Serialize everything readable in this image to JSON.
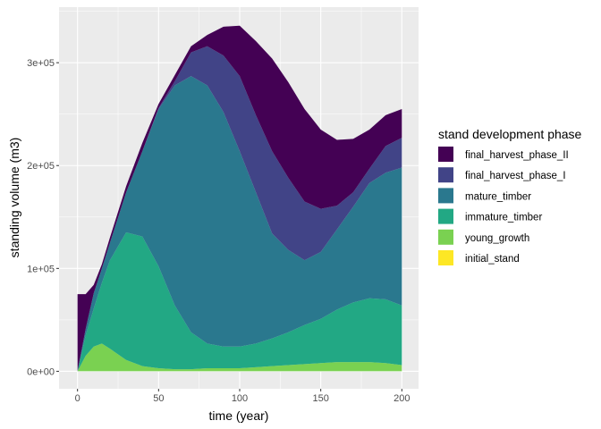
{
  "chart_data": {
    "type": "area",
    "stacked": true,
    "xlabel": "time (year)",
    "ylabel": "standing volume (m3)",
    "xlim": [
      -11.4,
      210.3
    ],
    "ylim": [
      -17000,
      354000
    ],
    "x_ticks": [
      0,
      50,
      100,
      150,
      200
    ],
    "x_tick_labels": [
      "0",
      "50",
      "100",
      "150",
      "200"
    ],
    "y_ticks": [
      0,
      100000,
      200000,
      300000
    ],
    "y_tick_labels": [
      "0e+00",
      "1e+05",
      "2e+05",
      "3e+05"
    ],
    "grid": true,
    "legend": {
      "title": "stand development phase",
      "placement": "right"
    },
    "x": [
      0,
      5,
      10,
      15,
      20,
      30,
      40,
      50,
      60,
      70,
      80,
      90,
      100,
      110,
      120,
      130,
      140,
      150,
      160,
      170,
      180,
      190,
      200
    ],
    "series": [
      {
        "name": "final_harvest_phase_II",
        "color": "#440154",
        "values": [
          75000,
          34000,
          8000,
          4000,
          5000,
          6000,
          8000,
          4000,
          6000,
          6000,
          11000,
          28000,
          49000,
          72000,
          90000,
          93000,
          90000,
          77000,
          64000,
          52000,
          38000,
          30000,
          28000
        ]
      },
      {
        "name": "final_harvest_phase_I",
        "color": "#414487",
        "values": [
          0,
          0,
          0,
          0,
          0,
          0,
          0,
          1000,
          4000,
          23000,
          38000,
          55000,
          73000,
          75000,
          80000,
          70000,
          57000,
          42000,
          23000,
          14000,
          14000,
          26000,
          29000
        ]
      },
      {
        "name": "mature_timber",
        "color": "#2A788E",
        "values": [
          0,
          6000,
          15000,
          14000,
          17000,
          39000,
          83000,
          153000,
          214000,
          249000,
          251000,
          228000,
          190000,
          147000,
          102000,
          80000,
          63000,
          65000,
          78000,
          93000,
          112000,
          123000,
          134000
        ]
      },
      {
        "name": "immature_timber",
        "color": "#22A884",
        "values": [
          0,
          20000,
          37000,
          59000,
          86000,
          124000,
          126000,
          99000,
          62000,
          36000,
          24000,
          21000,
          21000,
          23000,
          27000,
          32000,
          38000,
          43000,
          51000,
          58000,
          62000,
          62000,
          58000
        ]
      },
      {
        "name": "young_growth",
        "color": "#7AD151",
        "values": [
          0,
          15000,
          24000,
          27000,
          22000,
          11000,
          5000,
          3000,
          2000,
          2000,
          3000,
          3000,
          3000,
          4000,
          5000,
          6000,
          7000,
          8000,
          9000,
          9000,
          9000,
          8000,
          6000
        ]
      },
      {
        "name": "initial_stand",
        "color": "#FDE725",
        "values": [
          0,
          0,
          0,
          0,
          0,
          0,
          0,
          0,
          0,
          0,
          0,
          0,
          0,
          0,
          0,
          0,
          0,
          0,
          0,
          0,
          0,
          0,
          0
        ]
      }
    ]
  }
}
